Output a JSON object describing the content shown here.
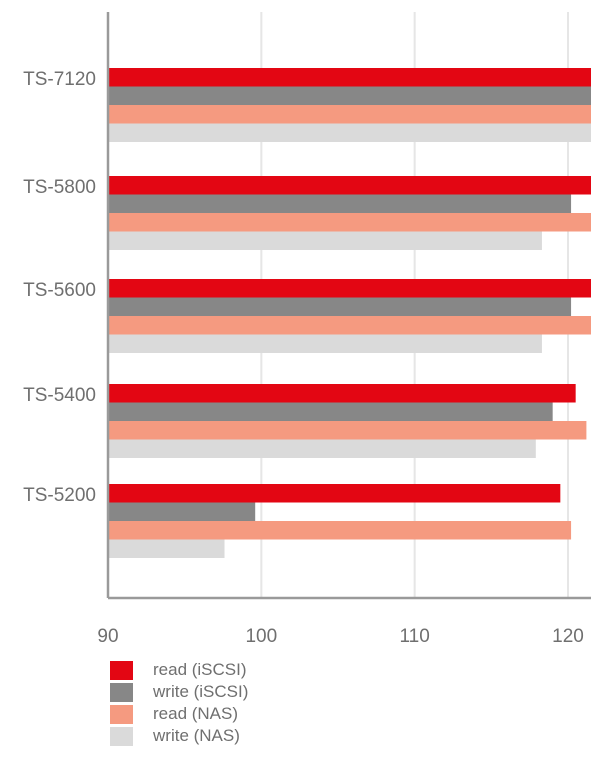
{
  "chart_data": {
    "type": "bar",
    "orientation": "horizontal",
    "categories": [
      "TS-7120",
      "TS-5800",
      "TS-5600",
      "TS-5400",
      "TS-5200"
    ],
    "series": [
      {
        "name": "read (iSCSI)",
        "color": "#e30613",
        "values": [
          122,
          122,
          122,
          120.5,
          119.5
        ]
      },
      {
        "name": "write (iSCSI)",
        "color": "#878787",
        "values": [
          122,
          120.2,
          120.2,
          119,
          99.6
        ]
      },
      {
        "name": "read (NAS)",
        "color": "#f59a80",
        "values": [
          122,
          122,
          122,
          121.2,
          120.2
        ]
      },
      {
        "name": "write (NAS)",
        "color": "#dadada",
        "values": [
          122,
          118.3,
          118.3,
          117.9,
          97.6
        ]
      }
    ],
    "xlim": [
      90,
      121.5
    ],
    "xticks": [
      "90",
      "100",
      "110",
      "120"
    ],
    "grid": true,
    "legend_position": "bottom-left"
  }
}
